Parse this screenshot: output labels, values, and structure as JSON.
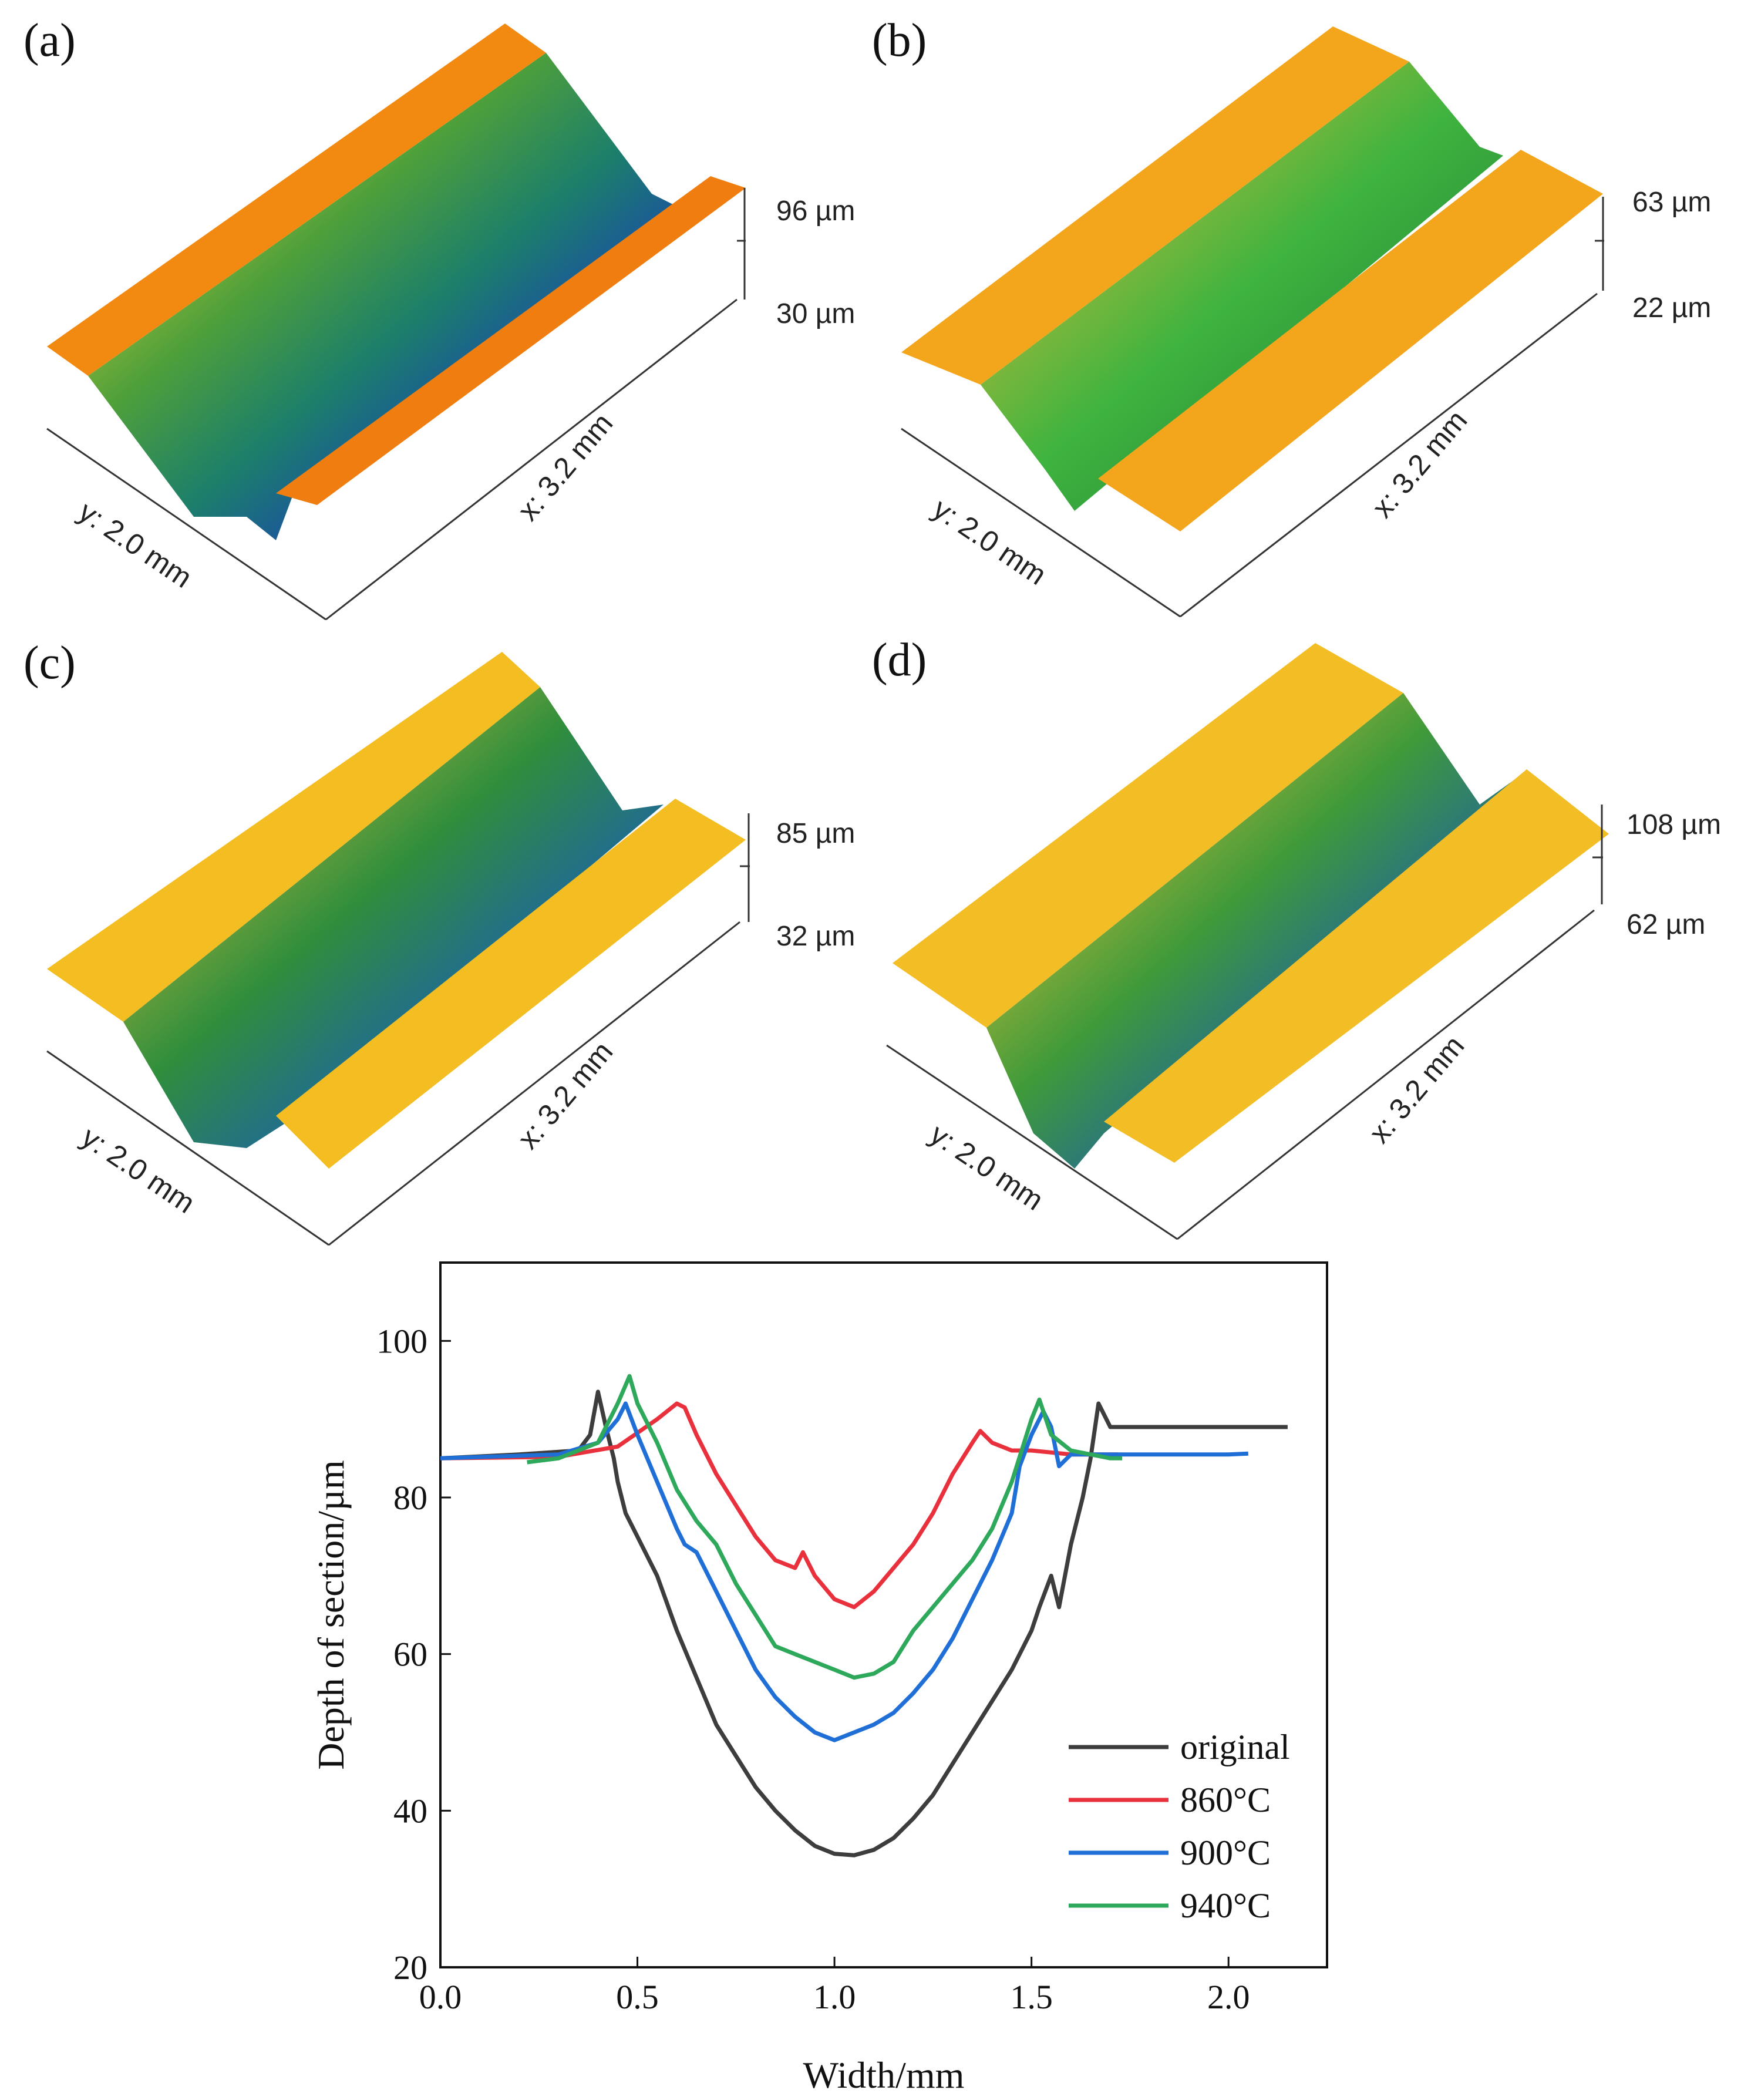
{
  "colors": {
    "original": "#3d3d3d",
    "c860": "#e8313c",
    "c900": "#1f6fd6",
    "c940": "#2ea85a",
    "surface_a": "#f28a12",
    "surface_b": "#f3a51c",
    "surface_c": "#f4bd22",
    "surface_d": "#f3bd25"
  },
  "panels": [
    {
      "id": "a",
      "label": "(a)",
      "scale_top": "96 µm",
      "scale_bottom": "30 µm",
      "x_dim": "x: 3.2 mm",
      "y_dim": "y: 2.0 mm"
    },
    {
      "id": "b",
      "label": "(b)",
      "scale_top": "63 µm",
      "scale_bottom": "22 µm",
      "x_dim": "x: 3.2 mm",
      "y_dim": "y: 2.0 mm"
    },
    {
      "id": "c",
      "label": "(c)",
      "scale_top": "85 µm",
      "scale_bottom": "32 µm",
      "x_dim": "x: 3.2 mm",
      "y_dim": "y: 2.0 mm"
    },
    {
      "id": "d",
      "label": "(d)",
      "scale_top": "108 µm",
      "scale_bottom": "62 µm",
      "x_dim": "x: 3.2 mm",
      "y_dim": "y: 2.0 mm"
    }
  ],
  "chart_data": {
    "type": "line",
    "title": "",
    "xlabel": "Width/mm",
    "ylabel": "Depth of section/µm",
    "xlim": [
      0.0,
      2.25
    ],
    "ylim": [
      20,
      110
    ],
    "xticks": [
      "0.0",
      "0.5",
      "1.0",
      "1.5",
      "2.0"
    ],
    "yticks": [
      "20",
      "40",
      "60",
      "80",
      "100"
    ],
    "legend_position": "bottom-right",
    "series": [
      {
        "name": "original",
        "color": "#3d3d3d",
        "x": [
          0.0,
          0.2,
          0.35,
          0.38,
          0.4,
          0.42,
          0.44,
          0.45,
          0.47,
          0.5,
          0.55,
          0.6,
          0.65,
          0.7,
          0.75,
          0.8,
          0.85,
          0.9,
          0.95,
          1.0,
          1.05,
          1.1,
          1.15,
          1.2,
          1.25,
          1.3,
          1.35,
          1.4,
          1.45,
          1.5,
          1.52,
          1.55,
          1.57,
          1.6,
          1.63,
          1.65,
          1.67,
          1.68,
          1.7,
          1.8,
          2.0,
          2.15
        ],
        "y": [
          85,
          85.5,
          86,
          88,
          93.5,
          89,
          85,
          82,
          78,
          75,
          70,
          63,
          57,
          51,
          47,
          43,
          40,
          37.5,
          35.5,
          34.5,
          34.3,
          35,
          36.5,
          39,
          42,
          46,
          50,
          54,
          58,
          63,
          66,
          70,
          66,
          74,
          80,
          85,
          92,
          91,
          89,
          89,
          89,
          89
        ]
      },
      {
        "name": "860°C",
        "color": "#e8313c",
        "x": [
          0.0,
          0.3,
          0.45,
          0.55,
          0.6,
          0.62,
          0.65,
          0.7,
          0.75,
          0.8,
          0.85,
          0.9,
          0.92,
          0.95,
          1.0,
          1.05,
          1.1,
          1.15,
          1.2,
          1.25,
          1.3,
          1.35,
          1.37,
          1.4,
          1.45,
          1.5,
          1.6,
          1.72
        ],
        "y": [
          85,
          85.2,
          86.5,
          90,
          92,
          91.5,
          88,
          83,
          79,
          75,
          72,
          71,
          73,
          70,
          67,
          66,
          68,
          71,
          74,
          78,
          83,
          87,
          88.5,
          87,
          86,
          86,
          85.5,
          85.5
        ]
      },
      {
        "name": "900°C",
        "color": "#1f6fd6",
        "x": [
          0.0,
          0.3,
          0.4,
          0.45,
          0.47,
          0.5,
          0.55,
          0.6,
          0.62,
          0.65,
          0.68,
          0.7,
          0.75,
          0.8,
          0.85,
          0.9,
          0.95,
          1.0,
          1.05,
          1.1,
          1.15,
          1.2,
          1.25,
          1.3,
          1.35,
          1.4,
          1.45,
          1.47,
          1.5,
          1.53,
          1.55,
          1.57,
          1.6,
          1.7,
          1.8,
          2.0,
          2.05
        ],
        "y": [
          85,
          85.5,
          87,
          90,
          92,
          88,
          82,
          76,
          74,
          73,
          70,
          68,
          63,
          58,
          54.5,
          52,
          50,
          49,
          50,
          51,
          52.5,
          55,
          58,
          62,
          67,
          72,
          78,
          84,
          88,
          91,
          89,
          84,
          85.5,
          85.5,
          85.5,
          85.5,
          85.6
        ]
      },
      {
        "name": "940°C",
        "color": "#2ea85a",
        "x": [
          0.22,
          0.3,
          0.4,
          0.45,
          0.48,
          0.5,
          0.55,
          0.6,
          0.65,
          0.7,
          0.75,
          0.8,
          0.85,
          0.9,
          0.95,
          1.0,
          1.05,
          1.1,
          1.15,
          1.2,
          1.25,
          1.3,
          1.35,
          1.4,
          1.45,
          1.5,
          1.52,
          1.55,
          1.6,
          1.65,
          1.7,
          1.73
        ],
        "y": [
          84.5,
          85,
          87,
          92,
          95.5,
          92,
          87,
          81,
          77,
          74,
          69,
          65,
          61,
          60,
          59,
          58,
          57,
          57.5,
          59,
          63,
          66,
          69,
          72,
          76,
          82,
          90,
          92.5,
          88,
          86,
          85.5,
          85,
          85
        ]
      }
    ]
  }
}
